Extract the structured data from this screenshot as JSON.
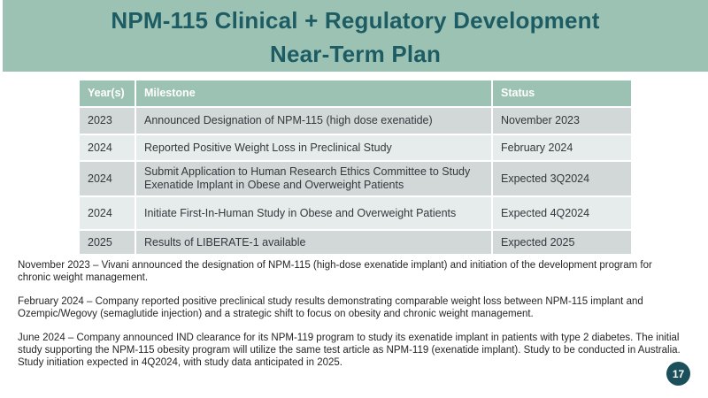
{
  "slide": {
    "title": {
      "line1": "NPM-115 Clinical + Regulatory Development",
      "line2": "Near-Term Plan"
    },
    "page_number": "17"
  },
  "table": {
    "headers": [
      "Year(s)",
      "Milestone",
      "Status"
    ],
    "rows": [
      {
        "year": "2023",
        "milestone": "Announced Designation of NPM-115 (high dose exenatide)",
        "status": "November 2023"
      },
      {
        "year": "2024",
        "milestone": "Reported Positive Weight Loss in Preclinical Study",
        "status": "February 2024"
      },
      {
        "year": "2024",
        "milestone": "Submit Application to Human Research Ethics Committee to Study Exenatide Implant in Obese and Overweight Patients",
        "status": "Expected 3Q2024"
      },
      {
        "year": "2024",
        "milestone": "Initiate First-In-Human Study in Obese and Overweight Patients",
        "status": "Expected 4Q2024"
      },
      {
        "year": "2025",
        "milestone": "Results of LIBERATE-1 available",
        "status": "Expected 2025"
      }
    ]
  },
  "paragraphs": [
    "November 2023 – Vivani announced the designation of NPM-115 (high-dose exenatide implant) and initiation of the development program for chronic weight management.",
    "February 2024 – Company reported positive preclinical study results demonstrating comparable weight loss between NPM-115 implant and Ozempic/Wegovy (semaglutide injection) and a strategic shift to focus on obesity and chronic weight management.",
    "June 2024 – Company announced IND clearance for its NPM-119 program to study its exenatide implant in patients with type 2 diabetes. The initial study supporting the NPM-115 obesity program will utilize the same test article as NPM-119 (exenatide implant). Study to be conducted in Australia. Study initiation expected in 4Q2024, with study data anticipated in 2025."
  ],
  "colors": {
    "band_green": "#9cc2b4",
    "title_teal": "#1d5c63",
    "row_dark": "#d2d8d8",
    "row_light": "#e6ecec",
    "page_circle": "#1b4f5a",
    "body_text": "#262626"
  }
}
